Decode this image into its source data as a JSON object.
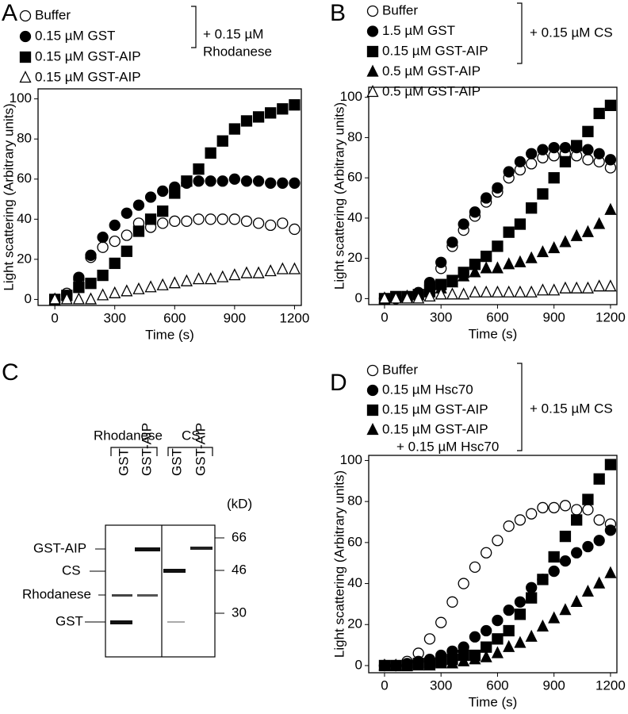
{
  "chart_data": [
    {
      "type": "scatter",
      "panel_label": "A",
      "xlabel": "Time (s)",
      "ylabel": "Light scattering (Arbitrary units)",
      "legend_note": [
        "+ 0.15 µM",
        "Rhodanese"
      ],
      "xlim": [
        -84,
        1234
      ],
      "ylim": [
        -3,
        105
      ],
      "xticks": [
        0,
        300,
        600,
        900,
        1200
      ],
      "yticks": [
        0,
        20,
        40,
        60,
        80,
        100
      ],
      "x": [
        0,
        60,
        120,
        180,
        240,
        300,
        360,
        420,
        480,
        540,
        600,
        660,
        720,
        780,
        840,
        900,
        960,
        1020,
        1080,
        1140,
        1200
      ],
      "series": [
        {
          "name": "Buffer",
          "color": "#000000",
          "marker": "circle",
          "filled": false,
          "values": [
            0,
            3,
            10,
            21,
            26,
            29,
            32,
            38,
            36,
            38,
            39,
            39,
            40,
            40,
            40,
            40,
            39,
            38,
            37,
            38,
            35
          ]
        },
        {
          "name": "0.15 µM GST",
          "color": "#000000",
          "marker": "circle",
          "filled": true,
          "values": [
            0,
            2,
            11,
            22,
            31,
            37,
            43,
            47,
            51,
            54,
            56,
            58,
            59,
            59,
            59,
            60,
            59,
            59,
            58,
            58,
            58
          ]
        },
        {
          "name": "0.15 µM GST-AIP",
          "color": "#000000",
          "marker": "square",
          "filled": true,
          "values": [
            0,
            2,
            6,
            8,
            12,
            18,
            24,
            34,
            40,
            44,
            53,
            59,
            65,
            73,
            79,
            85,
            89,
            91,
            93,
            95,
            97
          ]
        },
        {
          "name": "0.15 µM GST-AIP",
          "color": "#000000",
          "marker": "triangle",
          "filled": false,
          "values": [
            0,
            0,
            0,
            0,
            2,
            3,
            4,
            5,
            6,
            7,
            8,
            9,
            10,
            10,
            11,
            12,
            13,
            13,
            14,
            15,
            15
          ]
        }
      ]
    },
    {
      "type": "scatter",
      "panel_label": "B",
      "xlabel": "Time (s)",
      "ylabel": "Light scattering (Arbitrary units)",
      "legend_note": [
        "+ 0.15 µM CS"
      ],
      "xlim": [
        -84,
        1234
      ],
      "ylim": [
        -3,
        105
      ],
      "xticks": [
        0,
        300,
        600,
        900,
        1200
      ],
      "yticks": [
        0,
        20,
        40,
        60,
        80,
        100
      ],
      "x": [
        0,
        60,
        120,
        180,
        240,
        300,
        360,
        420,
        480,
        540,
        600,
        660,
        720,
        780,
        840,
        900,
        960,
        1020,
        1080,
        1140,
        1200
      ],
      "series": [
        {
          "name": "Buffer",
          "color": "#000000",
          "marker": "circle",
          "filled": false,
          "values": [
            0,
            0,
            1,
            2,
            7,
            15,
            26,
            34,
            41,
            48,
            53,
            60,
            64,
            67,
            70,
            71,
            72,
            71,
            69,
            68,
            65
          ]
        },
        {
          "name": "1.5 µM GST",
          "color": "#000000",
          "marker": "circle",
          "filled": true,
          "values": [
            0,
            0,
            1,
            3,
            8,
            18,
            28,
            37,
            43,
            50,
            55,
            63,
            68,
            72,
            74,
            75,
            75,
            75,
            74,
            72,
            69
          ]
        },
        {
          "name": "0.15 µM GST-AIP",
          "color": "#000000",
          "marker": "square",
          "filled": true,
          "values": [
            0,
            1,
            1,
            2,
            4,
            7,
            9,
            13,
            17,
            21,
            26,
            33,
            37,
            45,
            52,
            60,
            68,
            76,
            83,
            92,
            96
          ]
        },
        {
          "name": "0.5 µM GST-AIP",
          "color": "#000000",
          "marker": "triangle",
          "filled": true,
          "values": [
            0,
            0,
            1,
            2,
            3,
            5,
            8,
            11,
            13,
            15,
            15,
            17,
            18,
            20,
            23,
            25,
            28,
            31,
            33,
            37,
            44
          ]
        },
        {
          "name": "0.5 µM GST-AIP",
          "color": "#000000",
          "marker": "triangle",
          "filled": false,
          "values": [
            0,
            0,
            0,
            0,
            1,
            2,
            2,
            2,
            3,
            3,
            3,
            3,
            3,
            3,
            4,
            4,
            5,
            5,
            5,
            6,
            6
          ]
        }
      ]
    },
    {
      "type": "scatter",
      "panel_label": "D",
      "xlabel": "Time (s)",
      "ylabel": "Light scattering (Arbitrary units)",
      "legend_note": [
        "+ 0.15 µM CS"
      ],
      "xlim": [
        -84,
        1234
      ],
      "ylim": [
        -3.5,
        102.5
      ],
      "xticks": [
        0,
        300,
        600,
        900,
        1200
      ],
      "yticks": [
        0,
        20,
        40,
        60,
        80,
        100
      ],
      "x": [
        0,
        60,
        120,
        180,
        240,
        300,
        360,
        420,
        480,
        540,
        600,
        660,
        720,
        780,
        840,
        900,
        960,
        1020,
        1080,
        1140,
        1200
      ],
      "series": [
        {
          "name": "Buffer",
          "color": "#000000",
          "marker": "circle",
          "filled": false,
          "values": [
            0,
            0,
            2,
            6,
            13,
            21,
            31,
            40,
            48,
            55,
            61,
            68,
            71,
            74,
            77,
            77,
            78,
            76,
            76,
            71,
            69
          ]
        },
        {
          "name": "0.15 µM Hsc70",
          "color": "#000000",
          "marker": "circle",
          "filled": true,
          "values": [
            0,
            0,
            1,
            2,
            3,
            5,
            7,
            9,
            14,
            17,
            22,
            27,
            31,
            38,
            42,
            46,
            51,
            55,
            58,
            61,
            66
          ]
        },
        {
          "name": "0.15 µM GST-AIP",
          "color": "#000000",
          "marker": "square",
          "filled": true,
          "values": [
            0,
            0,
            0,
            1,
            1,
            2,
            3,
            5,
            5,
            9,
            13,
            17,
            25,
            33,
            42,
            53,
            63,
            71,
            81,
            91,
            98
          ]
        },
        {
          "name": [
            "0.15 µM GST-AIP",
            "+ 0.15 µM Hsc70"
          ],
          "color": "#000000",
          "marker": "triangle",
          "filled": true,
          "values": [
            0,
            0,
            0,
            0,
            0,
            1,
            1,
            2,
            3,
            4,
            6,
            9,
            11,
            14,
            19,
            23,
            27,
            31,
            36,
            40,
            45
          ]
        }
      ]
    }
  ],
  "gel": {
    "panel_label": "C",
    "groups": [
      "Rhodanese",
      "CS"
    ],
    "lanes": [
      "GST",
      "GST-AIP",
      "GST",
      "GST-AIP"
    ],
    "bands": [
      "GST-AIP",
      "CS",
      "Rhodanese",
      "GST"
    ],
    "size_unit": "(kD)",
    "sizes": [
      "66",
      "46",
      "30"
    ]
  }
}
